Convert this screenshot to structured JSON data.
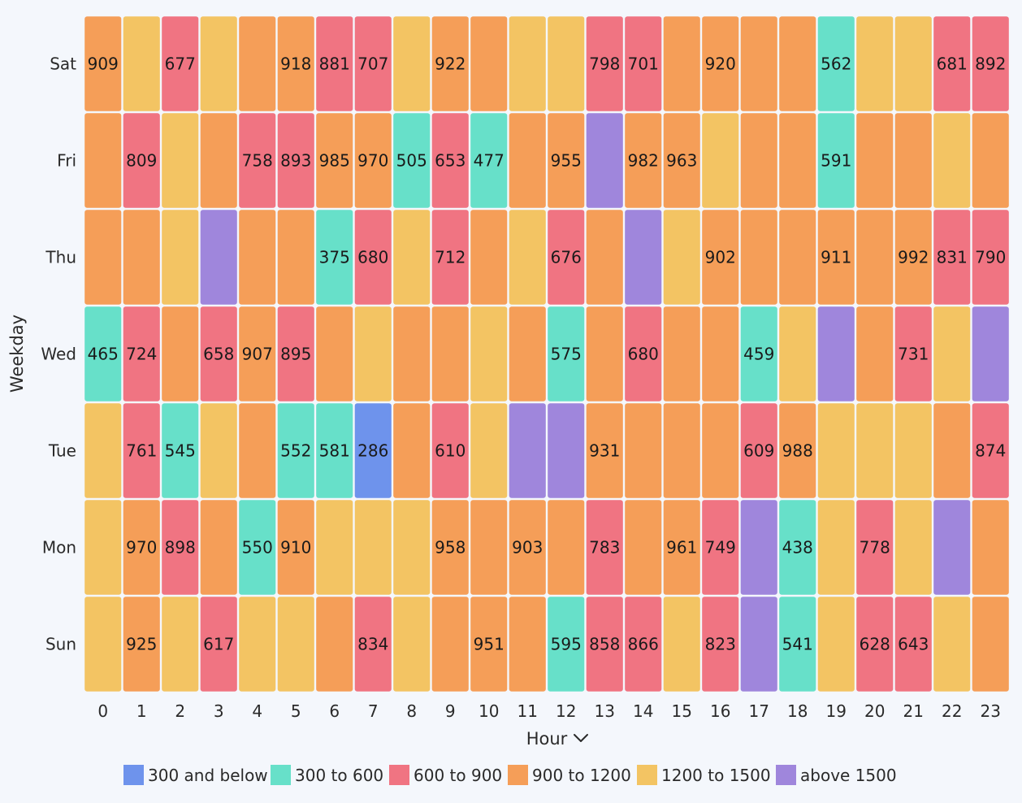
{
  "chart_data": {
    "type": "heatmap",
    "x_title": "Hour",
    "y_title": "Weekday",
    "x_categories": [
      "0",
      "1",
      "2",
      "3",
      "4",
      "5",
      "6",
      "7",
      "8",
      "9",
      "10",
      "11",
      "12",
      "13",
      "14",
      "15",
      "16",
      "17",
      "18",
      "19",
      "20",
      "21",
      "22",
      "23"
    ],
    "y_categories": [
      "Sat",
      "Fri",
      "Thu",
      "Wed",
      "Tue",
      "Mon",
      "Sun"
    ],
    "bins": [
      {
        "label": "300 and below",
        "color": "#6e93ec"
      },
      {
        "label": "300 to 600",
        "color": "#67e0c9"
      },
      {
        "label": "600 to 900",
        "color": "#f07482"
      },
      {
        "label": "900 to 1200",
        "color": "#f59e58"
      },
      {
        "label": "1200 to 1500",
        "color": "#f3c463"
      },
      {
        "label": "above 1500",
        "color": "#9f86dc"
      }
    ],
    "cell_bins": [
      [
        3,
        4,
        2,
        4,
        3,
        3,
        2,
        2,
        4,
        3,
        3,
        4,
        4,
        2,
        2,
        3,
        3,
        3,
        3,
        1,
        4,
        4,
        2,
        2
      ],
      [
        3,
        2,
        4,
        3,
        2,
        2,
        3,
        3,
        1,
        2,
        1,
        3,
        3,
        5,
        3,
        3,
        4,
        3,
        3,
        1,
        3,
        3,
        4,
        3
      ],
      [
        3,
        3,
        4,
        5,
        3,
        3,
        1,
        2,
        4,
        2,
        3,
        4,
        2,
        3,
        5,
        4,
        3,
        3,
        3,
        3,
        3,
        3,
        2,
        2
      ],
      [
        1,
        2,
        3,
        2,
        3,
        2,
        3,
        4,
        3,
        3,
        4,
        3,
        1,
        3,
        2,
        3,
        3,
        1,
        4,
        5,
        3,
        2,
        4,
        5
      ],
      [
        4,
        2,
        1,
        4,
        3,
        1,
        1,
        0,
        3,
        2,
        4,
        5,
        5,
        3,
        3,
        3,
        3,
        2,
        3,
        4,
        4,
        4,
        3,
        2
      ],
      [
        4,
        3,
        2,
        3,
        1,
        3,
        4,
        4,
        4,
        3,
        3,
        3,
        3,
        2,
        3,
        3,
        2,
        5,
        1,
        4,
        2,
        4,
        5,
        3
      ],
      [
        4,
        3,
        4,
        2,
        4,
        4,
        3,
        2,
        4,
        3,
        3,
        3,
        1,
        2,
        2,
        4,
        2,
        5,
        1,
        4,
        2,
        2,
        4,
        3
      ]
    ],
    "cell_labels": [
      [
        "909",
        "",
        "677",
        "",
        "",
        "918",
        "881",
        "707",
        "",
        "922",
        "",
        "",
        "",
        "798",
        "701",
        "",
        "920",
        "",
        "",
        "562",
        "",
        "",
        "681",
        "892"
      ],
      [
        "",
        "809",
        "",
        "",
        "758",
        "893",
        "985",
        "970",
        "505",
        "653",
        "477",
        "",
        "955",
        "",
        "982",
        "963",
        "",
        "",
        "",
        "591",
        "",
        "",
        "",
        ""
      ],
      [
        "",
        "",
        "",
        "",
        "",
        "",
        "375",
        "680",
        "",
        "712",
        "",
        "",
        "676",
        "",
        "",
        "",
        "902",
        "",
        "",
        "911",
        "",
        "992",
        "831",
        "790"
      ],
      [
        "465",
        "724",
        "",
        "658",
        "907",
        "895",
        "",
        "",
        "",
        "",
        "",
        "",
        "575",
        "",
        "680",
        "",
        "",
        "459",
        "",
        "",
        "",
        "731",
        "",
        ""
      ],
      [
        "",
        "761",
        "545",
        "",
        "",
        "552",
        "581",
        "286",
        "",
        "610",
        "",
        "",
        "",
        "931",
        "",
        "",
        "",
        "609",
        "988",
        "",
        "",
        "",
        "",
        "874"
      ],
      [
        "",
        "970",
        "898",
        "",
        "550",
        "910",
        "",
        "",
        "",
        "958",
        "",
        "903",
        "",
        "783",
        "",
        "961",
        "749",
        "",
        "438",
        "",
        "778",
        "",
        "",
        ""
      ],
      [
        "",
        "925",
        "",
        "617",
        "",
        "",
        "",
        "834",
        "",
        "",
        "951",
        "",
        "595",
        "858",
        "866",
        "",
        "823",
        "",
        "541",
        "",
        "628",
        "643",
        "",
        ""
      ]
    ]
  }
}
